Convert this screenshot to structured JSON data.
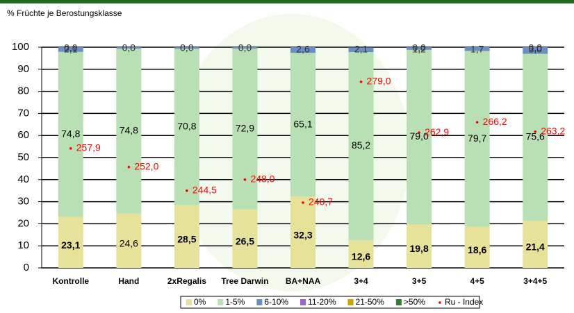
{
  "chart_data": {
    "type": "stacked_bar",
    "title": "% Früchte je Berostungsklasse",
    "categories": [
      "Kontrolle",
      "Hand",
      "2xRegalis",
      "Tree Darwin",
      "BA+NAA",
      "3+4",
      "3+5",
      "4+5",
      "3+4+5"
    ],
    "ylim": [
      0,
      100
    ],
    "yticks": [
      0,
      10,
      20,
      30,
      40,
      50,
      60,
      70,
      80,
      90,
      100
    ],
    "grid": true,
    "y2lim": [
      220,
      290
    ],
    "series": [
      {
        "name": "0%",
        "color": "#e6e29a",
        "values": [
          23.1,
          24.6,
          28.5,
          26.5,
          32.3,
          12.6,
          19.8,
          18.6,
          21.4
        ],
        "value_labels": [
          "23,1",
          "24,6",
          "28,5",
          "26,5",
          "32,3",
          "12,6",
          "19,8",
          "18,6",
          "21,4"
        ]
      },
      {
        "name": "1-5%",
        "color": "#b9e0b4",
        "values": [
          74.8,
          74.8,
          70.8,
          72.9,
          65.1,
          85.2,
          79.0,
          79.7,
          75.6
        ],
        "value_labels": [
          "74,8",
          "74,8",
          "70,8",
          "72,9",
          "65,1",
          "85,2",
          "79,0",
          "79,7",
          "75,6"
        ]
      },
      {
        "name": "6-10%",
        "color": "#6b8fc2",
        "values": [
          2.1,
          0.6,
          0.7,
          0.6,
          2.6,
          2.1,
          1.2,
          1.7,
          3.0
        ],
        "value_labels": [
          "2,1",
          null,
          null,
          null,
          "2,6",
          "2,1",
          "1,2",
          "1,7",
          "3,0"
        ]
      },
      {
        "name": "11-20%",
        "color": "#9966cc",
        "values": [
          0,
          0,
          0,
          0,
          0,
          0,
          0,
          0,
          0
        ],
        "value_labels": [
          "0,0",
          "0,0",
          "0,0",
          "0,0",
          null,
          null,
          "0,0",
          null,
          "0,0"
        ]
      },
      {
        "name": "21-50%",
        "color": "#c8a400",
        "values": [
          0,
          0,
          0,
          0,
          0,
          0,
          0,
          0,
          0
        ]
      },
      {
        "name": ">50%",
        "color": "#2e7d32",
        "values": [
          0,
          0,
          0,
          0,
          0,
          0,
          0,
          0,
          0
        ]
      },
      {
        "name": "Ru - Index",
        "type": "scatter",
        "axis": "y2",
        "color": "#ff0000",
        "values": [
          257.9,
          252.0,
          244.5,
          248.0,
          240.7,
          279.0,
          262.9,
          266.2,
          263.2
        ],
        "value_labels": [
          "257,9",
          "252,0",
          "244,5",
          "248,0",
          "240,7",
          "279,0",
          "262,9",
          "266,2",
          "263,2"
        ]
      }
    ]
  }
}
